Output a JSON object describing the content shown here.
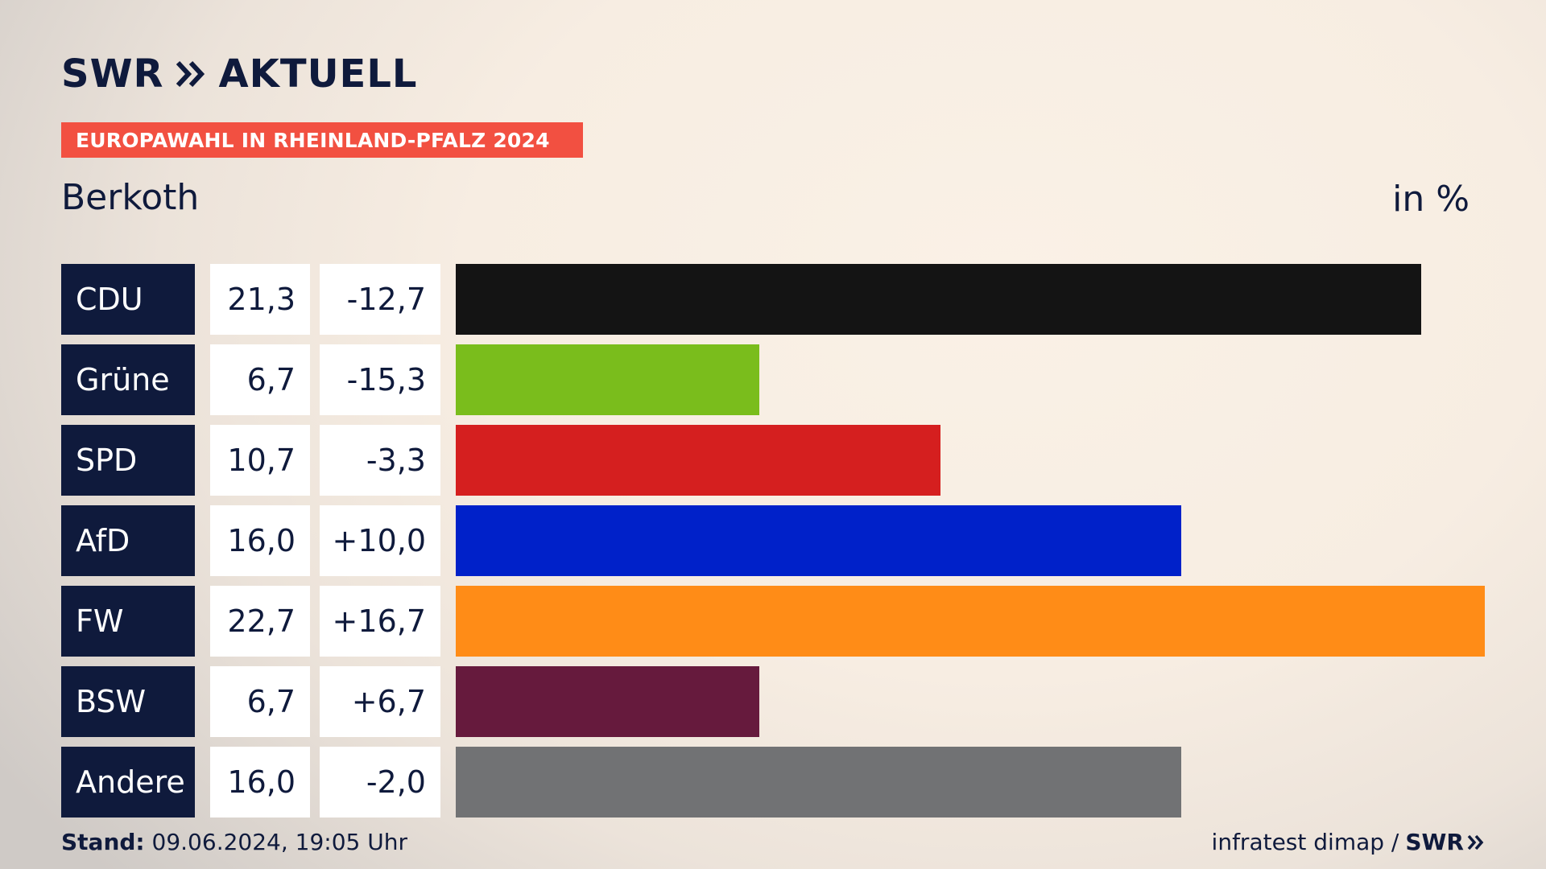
{
  "header": {
    "logo_text": "SWR",
    "logo_text2": "AKTUELL",
    "banner": "EUROPAWAHL IN RHEINLAND-PFALZ 2024",
    "place": "Berkoth",
    "unit": "in %"
  },
  "chart_data": {
    "type": "bar",
    "orientation": "horizontal",
    "title": "EUROPAWAHL IN RHEINLAND-PFALZ 2024",
    "subtitle": "Berkoth",
    "unit": "in %",
    "categories": [
      "CDU",
      "Grüne",
      "SPD",
      "AfD",
      "FW",
      "BSW",
      "Andere"
    ],
    "values": [
      21.3,
      6.7,
      10.7,
      16.0,
      22.7,
      6.7,
      16.0
    ],
    "value_labels": [
      "21,3",
      "6,7",
      "10,7",
      "16,0",
      "22,7",
      "6,7",
      "16,0"
    ],
    "diff_labels": [
      "-12,7",
      "-15,3",
      "-3,3",
      "+10,0",
      "+16,7",
      "+6,7",
      "-2,0"
    ],
    "colors": [
      "#141414",
      "#7abd1c",
      "#d51f1f",
      "#0021c9",
      "#ff8c17",
      "#661a3d",
      "#717274"
    ],
    "xlim": [
      0,
      22.7
    ],
    "grid": false,
    "legend": "none"
  },
  "footer": {
    "stand_label": "Stand:",
    "stand_value": "09.06.2024, 19:05 Uhr",
    "source": "infratest dimap /",
    "brand": "SWR"
  }
}
